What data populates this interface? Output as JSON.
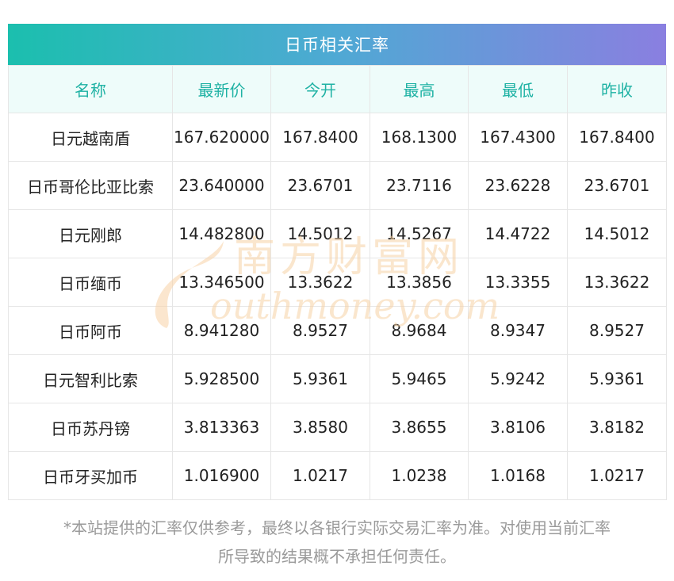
{
  "title": "日币相关汇率",
  "columns": [
    "名称",
    "最新价",
    "今开",
    "最高",
    "最低",
    "昨收"
  ],
  "rows": [
    [
      "日元越南盾",
      "167.620000",
      "167.8400",
      "168.1300",
      "167.4300",
      "167.8400"
    ],
    [
      "日币哥伦比亚比索",
      "23.640000",
      "23.6701",
      "23.7116",
      "23.6228",
      "23.6701"
    ],
    [
      "日元刚郎",
      "14.482800",
      "14.5012",
      "14.5267",
      "14.4722",
      "14.5012"
    ],
    [
      "日币缅币",
      "13.346500",
      "13.3622",
      "13.3856",
      "13.3355",
      "13.3622"
    ],
    [
      "日币阿币",
      "8.941280",
      "8.9527",
      "8.9684",
      "8.9347",
      "8.9527"
    ],
    [
      "日元智利比索",
      "5.928500",
      "5.9361",
      "5.9465",
      "5.9242",
      "5.9361"
    ],
    [
      "日币苏丹镑",
      "3.813363",
      "3.8580",
      "3.8655",
      "3.8106",
      "3.8182"
    ],
    [
      "日币牙买加币",
      "1.016900",
      "1.0217",
      "1.0238",
      "1.0168",
      "1.0217"
    ]
  ],
  "watermark": {
    "cn": "南方财富网",
    "en": "outhmoney.com"
  },
  "footnote": {
    "line1": "*本站提供的汇率仅供参考，最终以各银行实际交易汇率为准。对使用当前汇率",
    "line2": "所导致的结果概不承担任何责任。"
  },
  "colors": {
    "header_text": "#1fb2a4",
    "header_bg": "#eefcfa",
    "title_gradient_start": "#1bbfae",
    "title_gradient_end": "#8a7fe0",
    "watermark": "#f7d2a6"
  }
}
